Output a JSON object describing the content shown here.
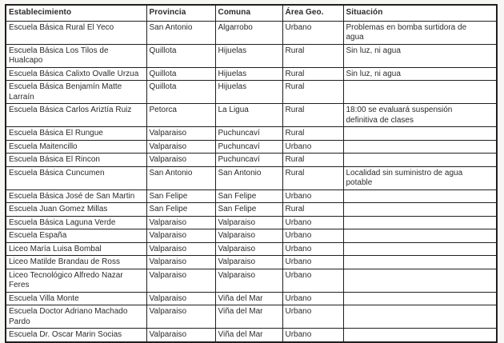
{
  "colors": {
    "page_background": "#f7f6f2",
    "table_background": "#ffffff",
    "border": "#1f1f1f",
    "text": "#2b2b2b"
  },
  "table": {
    "columns": [
      "Establecimiento",
      "Provincia",
      "Comuna",
      "Área Geo.",
      "Situación"
    ],
    "rows": [
      [
        "Escuela Básica Rural El Yeco",
        "San Antonio",
        "Algarrobo",
        "Urbano",
        "Problemas en bomba surtidora de agua"
      ],
      [
        "Escuela Básica Los Tilos de Hualcapo",
        "Quillota",
        "Hijuelas",
        "Rural",
        "Sin luz, ni agua"
      ],
      [
        "Escuela Básica Calixto Ovalle Urzua",
        "Quillota",
        "Hijuelas",
        "Rural",
        "Sin luz, ni agua"
      ],
      [
        "Escuela Básica Benjamín Matte Larraín",
        "Quillota",
        "Hijuelas",
        "Rural",
        ""
      ],
      [
        "Escuela Básica Carlos Ariztía Ruiz",
        "Petorca",
        "La Ligua",
        "Rural",
        "18:00 se evaluará suspensión definitiva de clases"
      ],
      [
        "Escuela Básica  El Rungue",
        "Valparaiso",
        "Puchuncaví",
        "Rural",
        ""
      ],
      [
        "Escuela Maitencillo",
        "Valparaiso",
        "Puchuncaví",
        "Urbano",
        ""
      ],
      [
        "Escuela Básica El Rincon",
        "Valparaiso",
        "Puchuncaví",
        "Rural",
        ""
      ],
      [
        "Escuela Básica Cuncumen",
        "San Antonio",
        "San Antonio",
        "Rural",
        "Localidad sin suministro de agua potable"
      ],
      [
        "Escuela Básica José de San Martin",
        "San Felipe",
        "San Felipe",
        "Urbano",
        ""
      ],
      [
        "Escuela Juan Gomez Millas",
        "San Felipe",
        "San Felipe",
        "Rural",
        ""
      ],
      [
        "Escuela Básica Laguna Verde",
        "Valparaiso",
        "Valparaiso",
        "Urbano",
        ""
      ],
      [
        "Escuela España",
        "Valparaiso",
        "Valparaiso",
        "Urbano",
        ""
      ],
      [
        "Liceo María Luisa Bombal",
        "Valparaiso",
        "Valparaiso",
        "Urbano",
        ""
      ],
      [
        "Liceo Matilde Brandau de Ross",
        "Valparaiso",
        "Valparaiso",
        "Urbano",
        ""
      ],
      [
        "Liceo Tecnológico Alfredo Nazar Feres",
        "Valparaiso",
        "Valparaiso",
        "Urbano",
        ""
      ],
      [
        "Escuela Villa Monte",
        "Valparaiso",
        "Viña del Mar",
        "Urbano",
        ""
      ],
      [
        "Escuela Doctor Adriano Machado Pardo",
        "Valparaiso",
        "Viña del Mar",
        "Urbano",
        ""
      ],
      [
        "Escuela Dr. Oscar Marin Socias",
        "Valparaiso",
        "Viña del Mar",
        "Urbano",
        ""
      ]
    ]
  }
}
